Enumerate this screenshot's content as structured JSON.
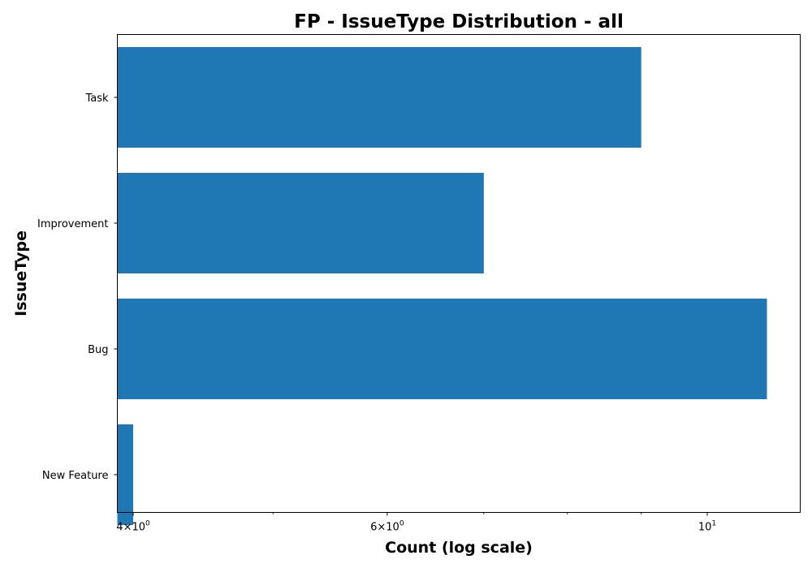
{
  "chart_data": {
    "type": "bar",
    "orientation": "horizontal",
    "title": "FP - IssueType Distribution - all",
    "xlabel": "Count (log scale)",
    "ylabel": "IssueType",
    "x_scale": "log",
    "xlim": [
      3.9,
      11.6
    ],
    "categories": [
      "Task",
      "Improvement",
      "Bug",
      "New Feature"
    ],
    "values": [
      9,
      7,
      11,
      4
    ],
    "x_major_ticks": [
      {
        "value": 4,
        "base": "4×10",
        "exp": "0"
      },
      {
        "value": 6,
        "base": "6×10",
        "exp": "0"
      },
      {
        "value": 10,
        "base": "10",
        "exp": "1"
      }
    ],
    "x_minor_ticks": [
      5,
      7,
      8,
      9
    ],
    "grid": false,
    "bar_color": "#1f77b4"
  }
}
